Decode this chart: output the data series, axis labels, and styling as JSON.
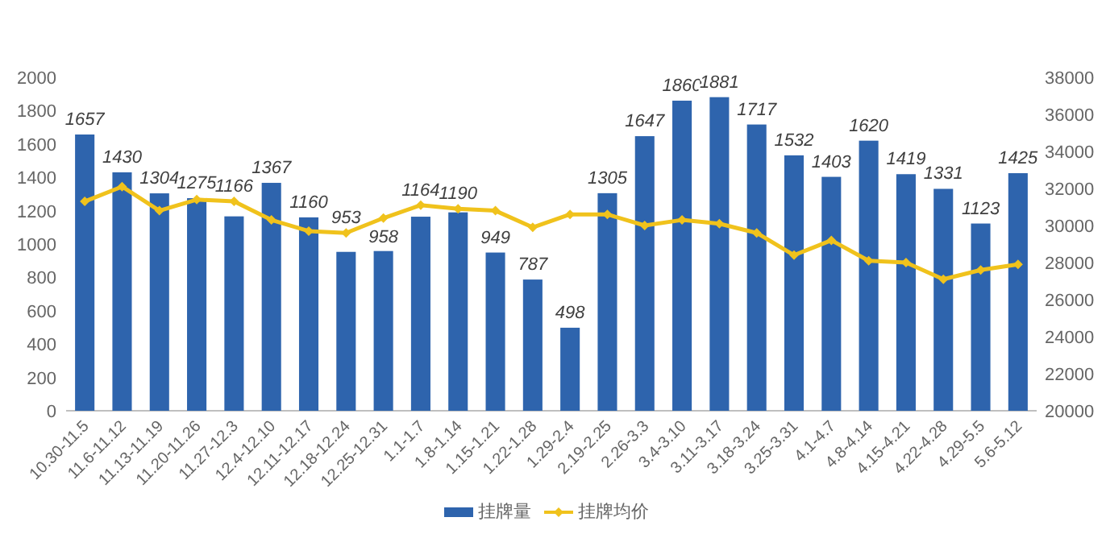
{
  "chart_data": {
    "type": "bar",
    "categories": [
      "10.30-11.5",
      "11.6-11.12",
      "11.13-11.19",
      "11.20-11.26",
      "11.27-12.3",
      "12.4-12.10",
      "12.11-12.17",
      "12.18-12.24",
      "12.25-12.31",
      "1.1-1.7",
      "1.8-1.14",
      "1.15-1.21",
      "1.22-1.28",
      "1.29-2.4",
      "2.19-2.25",
      "2.26-3.3",
      "3.4-3.10",
      "3.11-3.17",
      "3.18-3.24",
      "3.25-3.31",
      "4.1-4.7",
      "4.8-4.14",
      "4.15-4.21",
      "4.22-4.28",
      "4.29-5.5",
      "5.6-5.12"
    ],
    "series": [
      {
        "name": "挂牌量",
        "color": "#2e64ad",
        "values": [
          1657,
          1430,
          1304,
          1275,
          1166,
          1367,
          1160,
          953,
          958,
          1164,
          1190,
          949,
          787,
          498,
          1305,
          1647,
          1860,
          1881,
          1717,
          1532,
          1403,
          1620,
          1419,
          1331,
          1123,
          1425
        ],
        "value_labels": [
          "1657",
          "1430",
          "1304",
          "1275",
          "1166",
          "1367",
          "1160",
          "953",
          "958",
          "1164",
          "1190",
          "949",
          "787",
          "498",
          "1305",
          "1647",
          "1860",
          "1881",
          "1717",
          "1532",
          "1403",
          "1620",
          "1419",
          "1331",
          "1123",
          "1425"
        ]
      },
      {
        "name": "挂牌均价",
        "type": "line",
        "axis": "y2",
        "color": "#f0c21c",
        "marker": "diamond",
        "values": [
          31300,
          32100,
          30800,
          31400,
          31300,
          30300,
          29700,
          29600,
          30400,
          31100,
          30900,
          30800,
          29900,
          30600,
          30600,
          30000,
          30300,
          30100,
          29600,
          28400,
          29200,
          28100,
          28000,
          27100,
          27600,
          27900
        ]
      }
    ],
    "ylim": [
      0,
      2000
    ],
    "yticks": [
      0,
      200,
      400,
      600,
      800,
      1000,
      1200,
      1400,
      1600,
      1800,
      2000
    ],
    "y2lim": [
      20000,
      38000
    ],
    "y2ticks": [
      20000,
      22000,
      24000,
      26000,
      28000,
      30000,
      32000,
      34000,
      36000,
      38000
    ],
    "legend": "bottom"
  }
}
